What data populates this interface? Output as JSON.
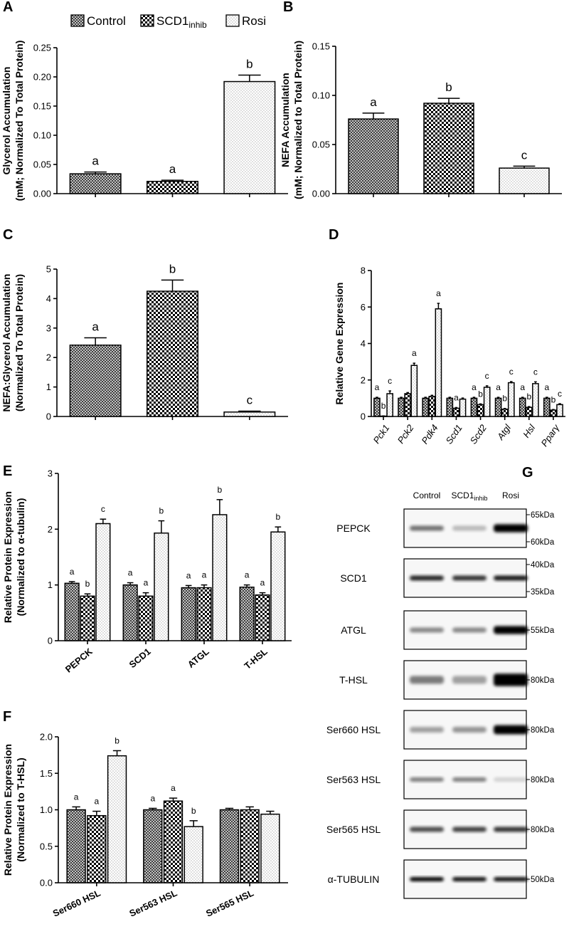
{
  "chart_data": [
    {
      "type": "bar",
      "panel": "A",
      "legend": true,
      "ylabel": [
        "Glycerol Accumulation",
        "(mM; Normalized To Total Protein)"
      ],
      "categories": [
        null
      ],
      "series": [
        {
          "name": "Control",
          "color": "#333333",
          "pattern": "crosshatch",
          "values": [
            0.034
          ],
          "errors": [
            0.003
          ],
          "letters": [
            "a"
          ]
        },
        {
          "name": "SCD1",
          "subscript": "inhib",
          "color": "#000000",
          "pattern": "checker",
          "values": [
            0.021
          ],
          "errors": [
            0.002
          ],
          "letters": [
            "a"
          ]
        },
        {
          "name": "Rosi",
          "color": "#666666",
          "pattern": "dots",
          "values": [
            0.192
          ],
          "errors": [
            0.011
          ],
          "letters": [
            "b"
          ]
        }
      ],
      "ylim": [
        0,
        0.25
      ],
      "yticks": [
        {
          "value": 0,
          "label": "0.00"
        },
        {
          "value": 0.05,
          "label": "0.05"
        },
        {
          "value": 0.1,
          "label": "0.10"
        },
        {
          "value": 0.15,
          "label": "0.15"
        },
        {
          "value": 0.2,
          "label": "0.20"
        },
        {
          "value": 0.25,
          "label": "0.25"
        }
      ]
    },
    {
      "type": "bar",
      "panel": "B",
      "ylabel": [
        "NEFA Accumulation",
        "(mM; Normalized to Total Protein)"
      ],
      "categories": [
        null
      ],
      "series": [
        {
          "name": "Control",
          "color": "#333333",
          "pattern": "crosshatch",
          "values": [
            0.076
          ],
          "errors": [
            0.006
          ],
          "letters": [
            "a"
          ]
        },
        {
          "name": "SCD1",
          "color": "#000000",
          "pattern": "checker",
          "values": [
            0.092
          ],
          "errors": [
            0.005
          ],
          "letters": [
            "b"
          ]
        },
        {
          "name": "Rosi",
          "color": "#666666",
          "pattern": "dots",
          "values": [
            0.026
          ],
          "errors": [
            0.002
          ],
          "letters": [
            "c"
          ]
        }
      ],
      "ylim": [
        0,
        0.15
      ],
      "yticks": [
        {
          "value": 0,
          "label": "0.00"
        },
        {
          "value": 0.05,
          "label": "0.05"
        },
        {
          "value": 0.1,
          "label": "0.10"
        },
        {
          "value": 0.15,
          "label": "0.15"
        }
      ]
    },
    {
      "type": "bar",
      "panel": "C",
      "ylabel": [
        "NEFA:Glycerol Accumulation",
        "(Normalized To Total Protein)"
      ],
      "categories": [
        null
      ],
      "series": [
        {
          "name": "Control",
          "color": "#333333",
          "pattern": "crosshatch",
          "values": [
            2.42
          ],
          "errors": [
            0.25
          ],
          "letters": [
            "a"
          ]
        },
        {
          "name": "SCD1",
          "color": "#000000",
          "pattern": "checker",
          "values": [
            4.25
          ],
          "errors": [
            0.38
          ],
          "letters": [
            "b"
          ]
        },
        {
          "name": "Rosi",
          "color": "#666666",
          "pattern": "dots",
          "values": [
            0.15
          ],
          "errors": [
            0.03
          ],
          "letters": [
            "c"
          ]
        }
      ],
      "ylim": [
        0,
        5
      ],
      "yticks": [
        0,
        1,
        2,
        3,
        4,
        5
      ]
    },
    {
      "type": "bar",
      "panel": "D",
      "ylabel": [
        "Relative Gene Expression"
      ],
      "italic_xlabels": true,
      "categories": [
        "Pck1",
        "Pck2",
        "Pdk4",
        "Scd1",
        "Scd2",
        "Atgl",
        "Hsl",
        "Pparγ"
      ],
      "series": [
        {
          "name": "Control",
          "color": "#333333",
          "pattern": "crosshatch",
          "values": [
            1.0,
            1.0,
            1.0,
            1.0,
            1.0,
            1.0,
            1.0,
            1.0
          ],
          "errors": [
            0.05,
            0.05,
            0.05,
            0.05,
            0.05,
            0.05,
            0.05,
            0.05
          ],
          "letters": [
            "a",
            null,
            null,
            null,
            "a",
            "a",
            "a",
            "a"
          ]
        },
        {
          "name": "SCD1",
          "color": "#000000",
          "pattern": "checker",
          "values": [
            0.02,
            1.25,
            1.1,
            0.45,
            0.65,
            0.4,
            0.5,
            0.35
          ],
          "errors": [
            0.01,
            0.06,
            0.06,
            0.04,
            0.04,
            0.04,
            0.04,
            0.03
          ],
          "letters": [
            "b",
            null,
            null,
            "a",
            "b",
            "b",
            "b",
            "b"
          ]
        },
        {
          "name": "Rosi",
          "color": "#666666",
          "pattern": "dots",
          "values": [
            1.25,
            2.8,
            5.9,
            0.95,
            1.6,
            1.85,
            1.8,
            0.65
          ],
          "errors": [
            0.15,
            0.12,
            0.3,
            0.06,
            0.08,
            0.06,
            0.1,
            0.05
          ],
          "letters": [
            "c",
            "a",
            "a",
            null,
            "c",
            "c",
            "c",
            "c"
          ]
        }
      ],
      "ylim": [
        0,
        8
      ],
      "yticks": [
        0,
        2,
        4,
        6,
        8
      ]
    },
    {
      "type": "bar",
      "panel": "E",
      "ylabel": [
        "Relative Protein Expression",
        "(Normalized to α-tubulin)"
      ],
      "bold_xlabels": true,
      "categories": [
        "PEPCK",
        "SCD1",
        "ATGL",
        "T-HSL"
      ],
      "series": [
        {
          "name": "Control",
          "color": "#333333",
          "pattern": "crosshatch",
          "values": [
            1.03,
            1.0,
            0.95,
            0.96
          ],
          "errors": [
            0.03,
            0.04,
            0.04,
            0.04
          ],
          "letters": [
            "a",
            "a",
            "a",
            "a"
          ]
        },
        {
          "name": "SCD1",
          "color": "#000000",
          "pattern": "checker",
          "values": [
            0.8,
            0.8,
            0.95,
            0.82
          ],
          "errors": [
            0.04,
            0.06,
            0.05,
            0.04
          ],
          "letters": [
            "b",
            "a",
            "a",
            "a"
          ]
        },
        {
          "name": "Rosi",
          "color": "#666666",
          "pattern": "dots",
          "values": [
            2.1,
            1.93,
            2.26,
            1.95
          ],
          "errors": [
            0.08,
            0.22,
            0.27,
            0.09
          ],
          "letters": [
            "c",
            "b",
            "b",
            "b"
          ]
        }
      ],
      "ylim": [
        0,
        3
      ],
      "yticks": [
        0,
        1,
        2,
        3
      ]
    },
    {
      "type": "bar",
      "panel": "F",
      "ylabel": [
        "Relative Protein Expression",
        "(Normalized to T-HSL)"
      ],
      "bold_xlabels": true,
      "categories": [
        "Ser660 HSL",
        "Ser563 HSL",
        "Ser565 HSL"
      ],
      "series": [
        {
          "name": "Control",
          "color": "#333333",
          "pattern": "crosshatch",
          "values": [
            1.0,
            1.0,
            1.0
          ],
          "errors": [
            0.04,
            0.02,
            0.02
          ],
          "letters": [
            "a",
            "a",
            null
          ]
        },
        {
          "name": "SCD1",
          "color": "#000000",
          "pattern": "checker",
          "values": [
            0.92,
            1.12,
            1.0
          ],
          "errors": [
            0.06,
            0.04,
            0.04
          ],
          "letters": [
            "a",
            "a",
            null
          ]
        },
        {
          "name": "Rosi",
          "color": "#666666",
          "pattern": "dots",
          "values": [
            1.74,
            0.77,
            0.94
          ],
          "errors": [
            0.07,
            0.08,
            0.04
          ],
          "letters": [
            "b",
            "b",
            null
          ]
        }
      ],
      "ylim": [
        0,
        2
      ],
      "yticks": [
        {
          "value": 0,
          "label": "0.0"
        },
        {
          "value": 0.5,
          "label": "0.5"
        },
        {
          "value": 1,
          "label": "1.0"
        },
        {
          "value": 1.5,
          "label": "1.5"
        },
        {
          "value": 2,
          "label": "2.0"
        }
      ]
    }
  ],
  "blot": {
    "panel": "G",
    "lanes": [
      {
        "name": "Control"
      },
      {
        "name": "SCD1",
        "subscript": "inhib"
      },
      {
        "name": "Rosi"
      }
    ],
    "rows": [
      {
        "label": "PEPCK",
        "markers": [
          "65kDa",
          "60kDa"
        ]
      },
      {
        "label": "SCD1",
        "markers": [
          "40kDa",
          "35kDa"
        ]
      },
      {
        "label": "ATGL",
        "markers": [
          "55kDa"
        ]
      },
      {
        "label": "T-HSL",
        "markers": [
          "80kDa"
        ]
      },
      {
        "label": "Ser660 HSL",
        "markers": [
          "80kDa"
        ]
      },
      {
        "label": "Ser563 HSL",
        "markers": [
          "80kDa"
        ]
      },
      {
        "label": "Ser565 HSL",
        "markers": [
          "80kDa"
        ]
      },
      {
        "label": "α-TUBULIN",
        "markers": [
          "50kDa"
        ]
      }
    ]
  }
}
